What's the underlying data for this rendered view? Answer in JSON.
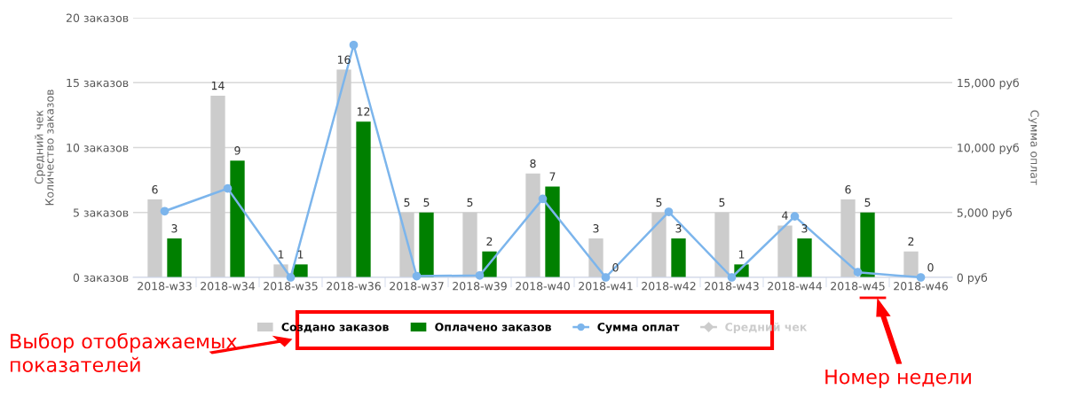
{
  "chart_data": {
    "type": "bar",
    "categories": [
      "2018-w33",
      "2018-w34",
      "2018-w35",
      "2018-w36",
      "2018-w37",
      "2018-w39",
      "2018-w40",
      "2018-w41",
      "2018-w42",
      "2018-w43",
      "2018-w44",
      "2018-w45",
      "2018-w46"
    ],
    "series": [
      {
        "name": "Создано заказов",
        "color": "#cccccc",
        "data_labels": true,
        "values": [
          6,
          14,
          1,
          16,
          5,
          5,
          8,
          3,
          5,
          5,
          4,
          6,
          2
        ]
      },
      {
        "name": "Оплачено заказов",
        "color": "#008000",
        "data_labels": true,
        "values": [
          3,
          9,
          1,
          12,
          5,
          2,
          7,
          0,
          3,
          1,
          3,
          5,
          0
        ]
      },
      {
        "name": "Сумма оплат",
        "type": "line",
        "axis": "y2",
        "color": "#7cb5ec",
        "marker": "circle",
        "values": [
          5100,
          6850,
          0,
          17900,
          100,
          150,
          6050,
          0,
          5050,
          0,
          4700,
          400,
          0
        ]
      },
      {
        "name": "Средний чек",
        "type": "line",
        "color": "#cccccc",
        "marker": "diamond",
        "values": [
          null,
          null,
          null,
          null,
          null,
          null,
          null,
          null,
          null,
          null,
          null,
          null,
          null
        ]
      }
    ],
    "ylabel": "Количество заказов",
    "y3label": "Средний чек",
    "y2label": "Сумма оплат",
    "ylim": [
      0,
      20
    ],
    "yticks": [
      {
        "value": 0,
        "label": "0 заказов"
      },
      {
        "value": 5,
        "label": "5 заказов"
      },
      {
        "value": 10,
        "label": "10 заказов"
      },
      {
        "value": 15,
        "label": "15 заказов"
      },
      {
        "value": 20,
        "label": "20 заказов"
      }
    ],
    "y2lim": [
      0,
      20000
    ],
    "y2ticks": [
      {
        "value": 0,
        "label": "0 руб"
      },
      {
        "value": 5000,
        "label": "5,000 руб"
      },
      {
        "value": 10000,
        "label": "10,000 руб"
      },
      {
        "value": 15000,
        "label": "15,000 руб"
      }
    ],
    "grid": "y",
    "legend": "bottom",
    "annotations": [
      "Выбор отображаемых\nпоказателей",
      "Номер недели"
    ]
  }
}
